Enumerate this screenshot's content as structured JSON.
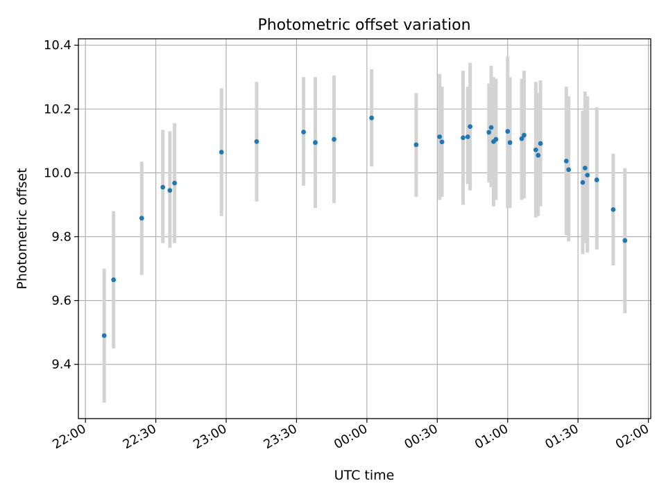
{
  "chart_data": {
    "type": "scatter",
    "title": "Photometric offset variation",
    "xlabel": "UTC time",
    "ylabel": "Photometric offset",
    "x_axis": {
      "kind": "time",
      "range": [
        "21:57",
        "02:01"
      ],
      "ticks": [
        "22:00",
        "22:30",
        "23:00",
        "23:30",
        "00:00",
        "00:30",
        "01:00",
        "01:30",
        "02:00"
      ]
    },
    "y_axis": {
      "range": [
        9.23,
        10.42
      ],
      "ticks": [
        "9.4",
        "9.6",
        "9.8",
        "10.0",
        "10.2",
        "10.4"
      ]
    },
    "grid": true,
    "series": [
      {
        "color": "#1f77b4",
        "errorbar_color": "#d3d3d3",
        "points": [
          {
            "t": "22:08",
            "y": 9.49,
            "lo": 9.28,
            "hi": 9.7
          },
          {
            "t": "22:12",
            "y": 9.665,
            "lo": 9.45,
            "hi": 9.88
          },
          {
            "t": "22:24",
            "y": 9.858,
            "lo": 9.68,
            "hi": 10.035
          },
          {
            "t": "22:33",
            "y": 9.955,
            "lo": 9.78,
            "hi": 10.135
          },
          {
            "t": "22:36",
            "y": 9.945,
            "lo": 9.765,
            "hi": 10.13
          },
          {
            "t": "22:38",
            "y": 9.968,
            "lo": 9.78,
            "hi": 10.155
          },
          {
            "t": "22:58",
            "y": 10.065,
            "lo": 9.865,
            "hi": 10.265
          },
          {
            "t": "23:13",
            "y": 10.098,
            "lo": 9.91,
            "hi": 10.285
          },
          {
            "t": "23:33",
            "y": 10.128,
            "lo": 9.96,
            "hi": 10.3
          },
          {
            "t": "23:38",
            "y": 10.095,
            "lo": 9.89,
            "hi": 10.3
          },
          {
            "t": "23:46",
            "y": 10.105,
            "lo": 9.905,
            "hi": 10.305
          },
          {
            "t": "00:02",
            "y": 10.172,
            "lo": 10.02,
            "hi": 10.325
          },
          {
            "t": "00:21",
            "y": 10.088,
            "lo": 9.925,
            "hi": 10.25
          },
          {
            "t": "00:31",
            "y": 10.113,
            "lo": 9.915,
            "hi": 10.31
          },
          {
            "t": "00:32",
            "y": 10.097,
            "lo": 9.925,
            "hi": 10.27
          },
          {
            "t": "00:41",
            "y": 10.11,
            "lo": 9.9,
            "hi": 10.32
          },
          {
            "t": "00:43",
            "y": 10.113,
            "lo": 9.965,
            "hi": 10.27
          },
          {
            "t": "00:44",
            "y": 10.145,
            "lo": 9.945,
            "hi": 10.345
          },
          {
            "t": "00:52",
            "y": 10.127,
            "lo": 9.97,
            "hi": 10.28
          },
          {
            "t": "00:53",
            "y": 10.142,
            "lo": 9.955,
            "hi": 10.335
          },
          {
            "t": "00:54",
            "y": 10.098,
            "lo": 9.895,
            "hi": 10.3
          },
          {
            "t": "00:55",
            "y": 10.105,
            "lo": 9.915,
            "hi": 10.295
          },
          {
            "t": "01:00",
            "y": 10.13,
            "lo": 9.89,
            "hi": 10.365
          },
          {
            "t": "01:01",
            "y": 10.095,
            "lo": 9.89,
            "hi": 10.3
          },
          {
            "t": "01:06",
            "y": 10.107,
            "lo": 9.915,
            "hi": 10.295
          },
          {
            "t": "01:07",
            "y": 10.118,
            "lo": 9.92,
            "hi": 10.32
          },
          {
            "t": "01:12",
            "y": 10.072,
            "lo": 9.86,
            "hi": 10.285
          },
          {
            "t": "01:13",
            "y": 10.055,
            "lo": 9.865,
            "hi": 10.25
          },
          {
            "t": "01:14",
            "y": 10.092,
            "lo": 9.895,
            "hi": 10.29
          },
          {
            "t": "01:25",
            "y": 10.037,
            "lo": 9.805,
            "hi": 10.27
          },
          {
            "t": "01:26",
            "y": 10.01,
            "lo": 9.785,
            "hi": 10.24
          },
          {
            "t": "01:32",
            "y": 9.97,
            "lo": 9.745,
            "hi": 10.195
          },
          {
            "t": "01:33",
            "y": 10.015,
            "lo": 9.78,
            "hi": 10.255
          },
          {
            "t": "01:34",
            "y": 9.993,
            "lo": 9.75,
            "hi": 10.24
          },
          {
            "t": "01:38",
            "y": 9.978,
            "lo": 9.76,
            "hi": 10.205
          },
          {
            "t": "01:45",
            "y": 9.885,
            "lo": 9.71,
            "hi": 10.06
          },
          {
            "t": "01:50",
            "y": 9.788,
            "lo": 9.56,
            "hi": 10.015
          }
        ]
      }
    ]
  }
}
